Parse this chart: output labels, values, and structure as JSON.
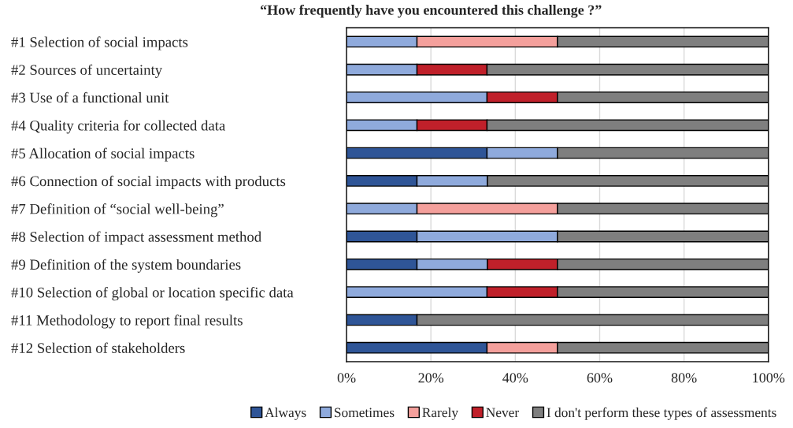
{
  "chart_data": {
    "type": "bar",
    "orientation": "horizontal",
    "stacked": true,
    "title": "“How frequently have you encountered this challenge ?”",
    "categories": [
      "#1 Selection of social impacts",
      "#2 Sources of uncertainty",
      "#3 Use of a functional unit",
      "#4 Quality criteria for collected data",
      "#5 Allocation of social impacts",
      "#6 Connection of social impacts with products",
      "#7 Definition of “social well-being”",
      "#8 Selection of impact assessment method",
      "#9 Definition of the system boundaries",
      "#10 Selection of global or location specific data",
      "#11 Methodology to report final results",
      "#12 Selection of stakeholders"
    ],
    "series": [
      {
        "name": "Always",
        "color": "#2f5597",
        "values": [
          0,
          0,
          0,
          0,
          33.3,
          16.7,
          0,
          16.7,
          16.7,
          0,
          16.7,
          33.3
        ]
      },
      {
        "name": "Sometimes",
        "color": "#8faadc",
        "values": [
          16.7,
          16.7,
          33.3,
          16.7,
          16.7,
          16.7,
          16.7,
          33.3,
          16.7,
          33.3,
          0,
          0
        ]
      },
      {
        "name": "Rarely",
        "color": "#f4a09c",
        "values": [
          33.3,
          0,
          0,
          0,
          0,
          0,
          33.3,
          0,
          0,
          0,
          0,
          16.7
        ]
      },
      {
        "name": "Never",
        "color": "#c0202a",
        "values": [
          0,
          16.6,
          16.7,
          16.6,
          0,
          0,
          0,
          0,
          16.6,
          16.7,
          0,
          0
        ]
      },
      {
        "name": "I don't perform these types of assessments",
        "color": "#7f7f7f",
        "values": [
          50,
          66.7,
          50,
          66.7,
          50,
          66.6,
          50,
          50,
          50,
          50,
          83.3,
          50
        ]
      }
    ],
    "xlim": [
      0,
      100
    ],
    "xticks": [
      {
        "value": 0,
        "label": "0%"
      },
      {
        "value": 20,
        "label": "20%"
      },
      {
        "value": 40,
        "label": "40%"
      },
      {
        "value": 60,
        "label": "60%"
      },
      {
        "value": 80,
        "label": "80%"
      },
      {
        "value": 100,
        "label": "100%"
      }
    ],
    "grid": "x",
    "legend": "bottom"
  }
}
